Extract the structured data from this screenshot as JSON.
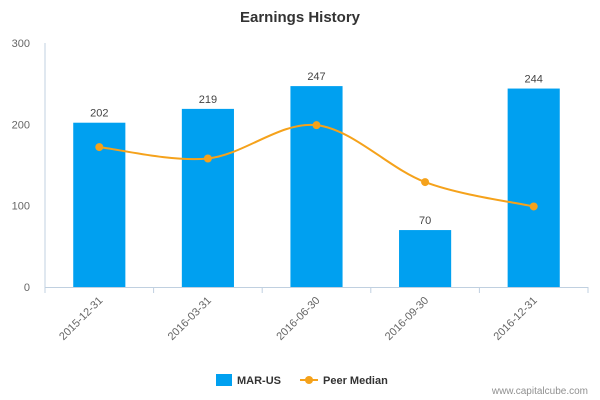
{
  "chart_data": {
    "type": "bar",
    "title": "Earnings History",
    "categories": [
      "2015-12-31",
      "2016-03-31",
      "2016-06-30",
      "2016-09-30",
      "2016-12-31"
    ],
    "series": [
      {
        "name": "MAR-US",
        "kind": "bar",
        "color": "#00a0f0",
        "values": [
          202,
          219,
          247,
          70,
          244
        ],
        "labels": [
          "202",
          "219",
          "247",
          "70",
          "244"
        ]
      },
      {
        "name": "Peer Median",
        "kind": "line",
        "color": "#f5a21b",
        "values": [
          172,
          158,
          199,
          129,
          99
        ]
      }
    ],
    "ylim": [
      0,
      300
    ],
    "yticks": [
      0,
      100,
      200,
      300
    ],
    "ytick_labels": [
      "0",
      "100",
      "200",
      "300"
    ],
    "xlabel": "",
    "ylabel": "",
    "grid": false,
    "legend_position": "bottom"
  },
  "credit": "www.capitalcube.com"
}
